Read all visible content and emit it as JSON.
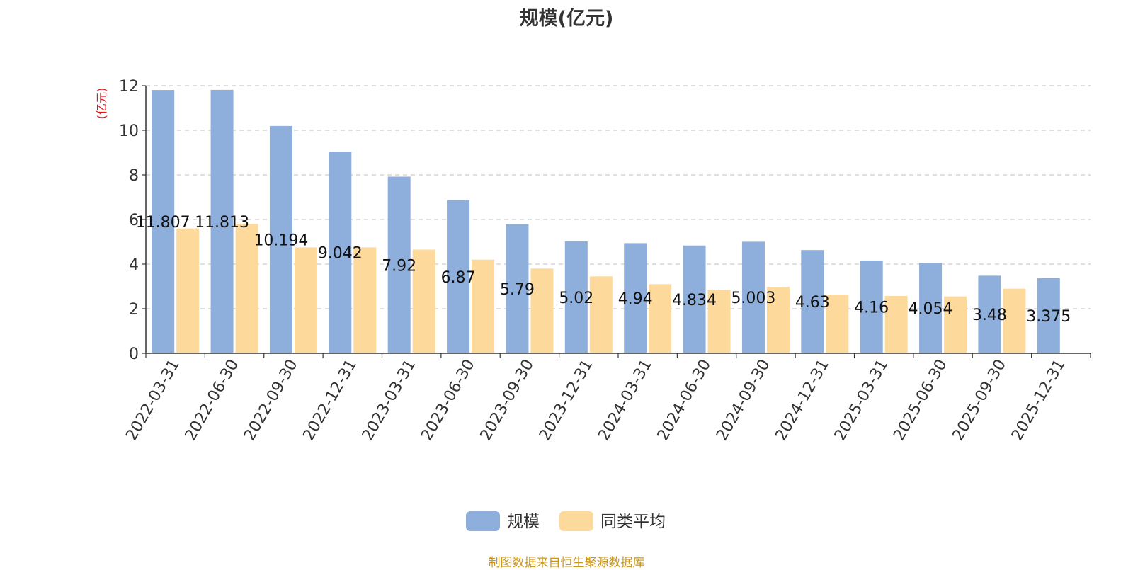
{
  "chart_data": {
    "type": "bar",
    "title": "规模(亿元)",
    "ylabel": "(亿元)",
    "xlabel": "",
    "ylim": [
      0,
      12
    ],
    "yticks": [
      0,
      2,
      4,
      6,
      8,
      10,
      12
    ],
    "grid": true,
    "legend_position": "bottom",
    "categories": [
      "2022-03-31",
      "2022-06-30",
      "2022-09-30",
      "2022-12-31",
      "2023-03-31",
      "2023-06-30",
      "2023-09-30",
      "2023-12-31",
      "2024-03-31",
      "2024-06-30",
      "2024-09-30",
      "2024-12-31",
      "2025-03-31",
      "2025-06-30",
      "2025-09-30",
      "2025-12-31"
    ],
    "series": [
      {
        "name": "规模",
        "color": "#8eaedb",
        "values": [
          11.807,
          11.813,
          10.194,
          9.042,
          7.92,
          6.87,
          5.79,
          5.02,
          4.94,
          4.834,
          5.003,
          4.63,
          4.16,
          4.054,
          3.48,
          3.375
        ],
        "labels": [
          "11.807",
          "11.813",
          "10.194",
          "9.042",
          "7.92",
          "6.87",
          "5.79",
          "5.02",
          "4.94",
          "4.834",
          "5.003",
          "4.63",
          "4.16",
          "4.054",
          "3.48",
          "3.375"
        ]
      },
      {
        "name": "同类平均",
        "color": "#fdd99b",
        "values": [
          5.6,
          5.8,
          4.75,
          4.75,
          4.65,
          4.2,
          3.8,
          3.45,
          3.1,
          2.85,
          2.98,
          2.63,
          2.57,
          2.55,
          2.9,
          null
        ]
      }
    ],
    "source_note": "制图数据来自恒生聚源数据库"
  }
}
